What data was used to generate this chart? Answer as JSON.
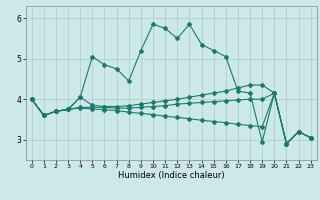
{
  "xlabel": "Humidex (Indice chaleur)",
  "xlim": [
    -0.5,
    23.5
  ],
  "ylim": [
    2.5,
    6.3
  ],
  "yticks": [
    3,
    4,
    5,
    6
  ],
  "xticks": [
    0,
    1,
    2,
    3,
    4,
    5,
    6,
    7,
    8,
    9,
    10,
    11,
    12,
    13,
    14,
    15,
    16,
    17,
    18,
    19,
    20,
    21,
    22,
    23
  ],
  "bg_color": "#cce8e8",
  "grid_color": "#aacccc",
  "line_color": "#1a7a6e",
  "lines": [
    [
      4.0,
      3.6,
      3.7,
      3.75,
      4.05,
      5.05,
      4.85,
      4.75,
      4.45,
      5.2,
      5.85,
      5.75,
      5.5,
      5.85,
      5.35,
      5.2,
      5.05,
      4.2,
      4.15,
      2.95,
      4.15,
      2.9,
      3.2,
      3.05
    ],
    [
      4.0,
      3.6,
      3.7,
      3.75,
      4.05,
      3.85,
      3.82,
      3.82,
      3.84,
      3.88,
      3.92,
      3.96,
      4.0,
      4.05,
      4.1,
      4.15,
      4.2,
      4.28,
      4.35,
      4.35,
      4.15,
      2.9,
      3.2,
      3.05
    ],
    [
      4.0,
      3.6,
      3.7,
      3.75,
      3.8,
      3.8,
      3.8,
      3.78,
      3.78,
      3.8,
      3.82,
      3.84,
      3.88,
      3.9,
      3.92,
      3.94,
      3.96,
      3.98,
      4.0,
      4.0,
      4.15,
      2.9,
      3.2,
      3.05
    ],
    [
      4.0,
      3.6,
      3.7,
      3.75,
      3.78,
      3.76,
      3.74,
      3.72,
      3.68,
      3.65,
      3.62,
      3.58,
      3.55,
      3.52,
      3.48,
      3.45,
      3.42,
      3.38,
      3.35,
      3.32,
      4.15,
      2.9,
      3.2,
      3.05
    ]
  ]
}
